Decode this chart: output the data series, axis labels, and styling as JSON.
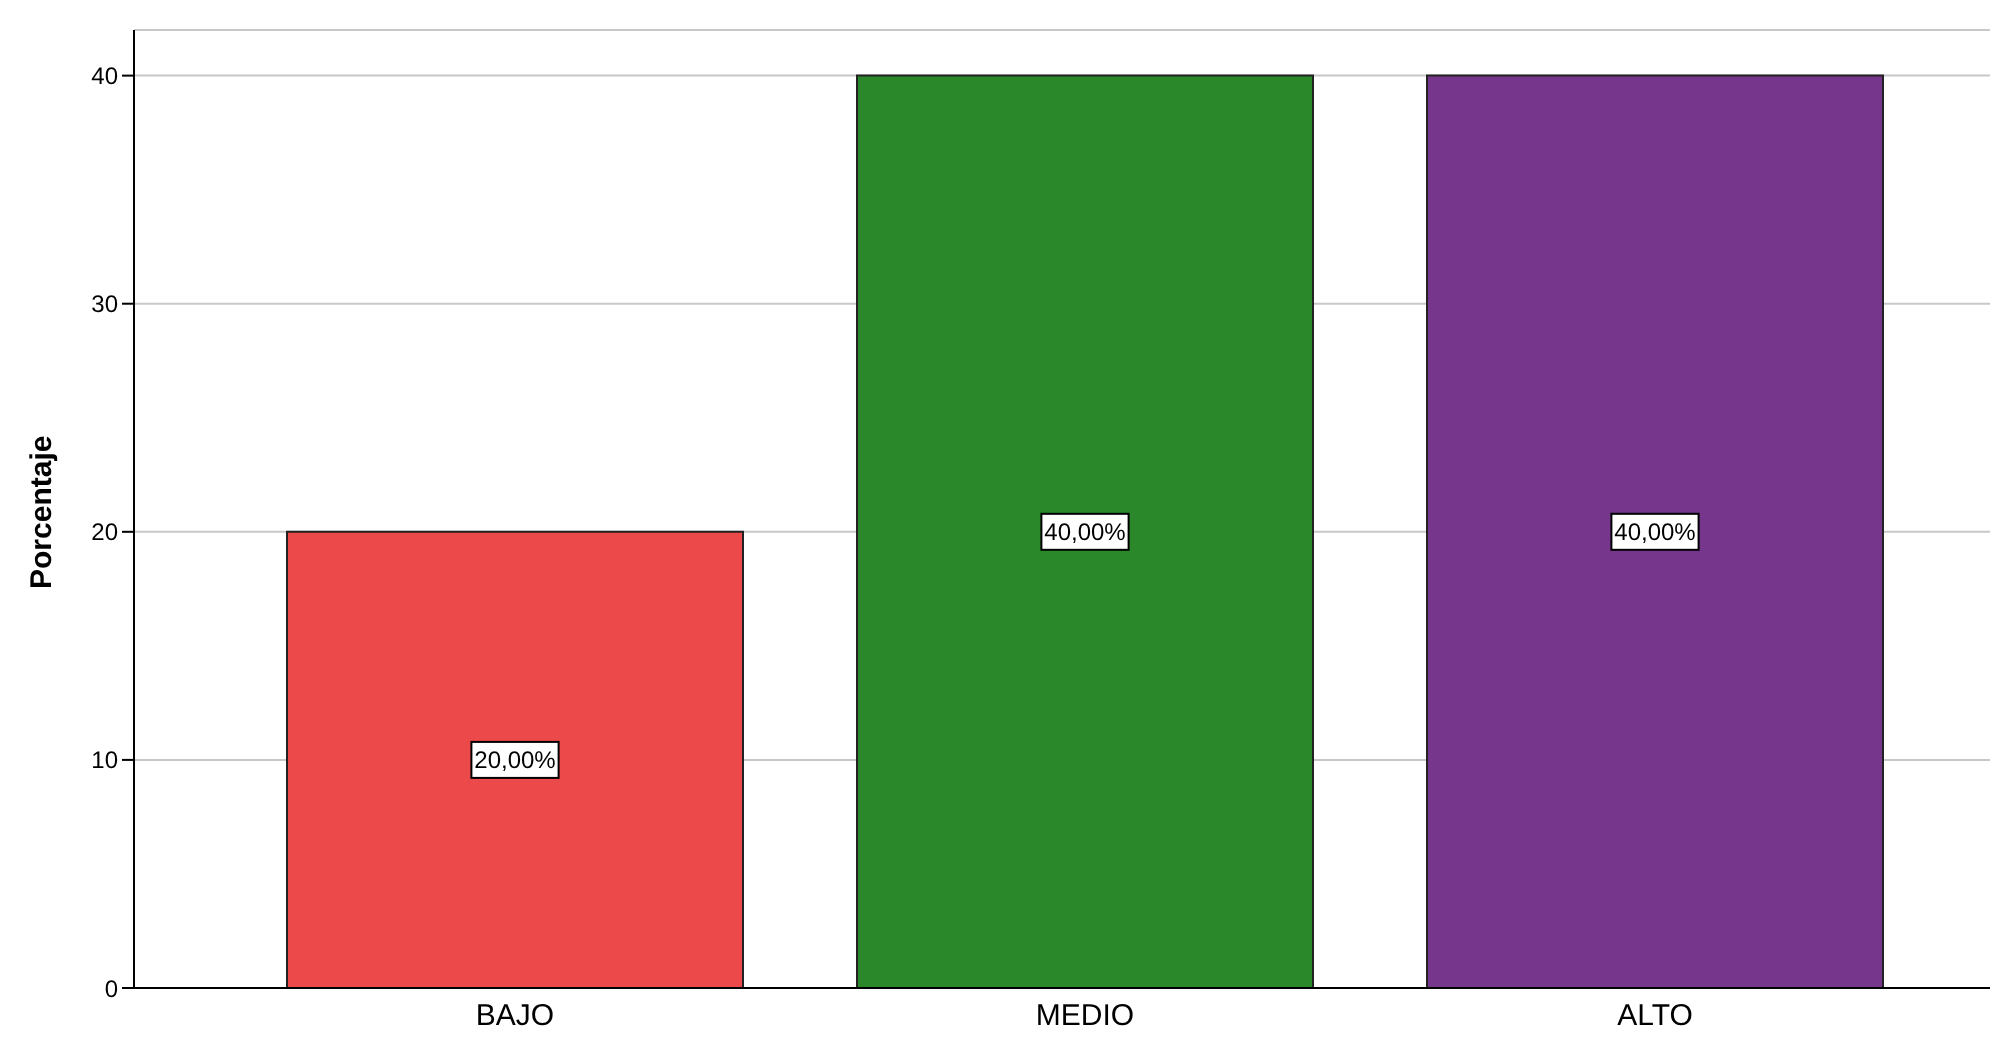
{
  "chart_data": {
    "type": "bar",
    "ylabel": "Porcentaje",
    "categories": [
      "BAJO",
      "MEDIO",
      "ALTO"
    ],
    "values": [
      20,
      40,
      40
    ],
    "colors": [
      "#ec4a4a",
      "#2a882a",
      "#76368b"
    ],
    "value_labels": [
      "20,00%",
      "40,00%",
      "40,00%"
    ],
    "ylim": [
      0,
      42
    ],
    "yticks": [
      0,
      10,
      20,
      30,
      40
    ],
    "grid": "y"
  }
}
